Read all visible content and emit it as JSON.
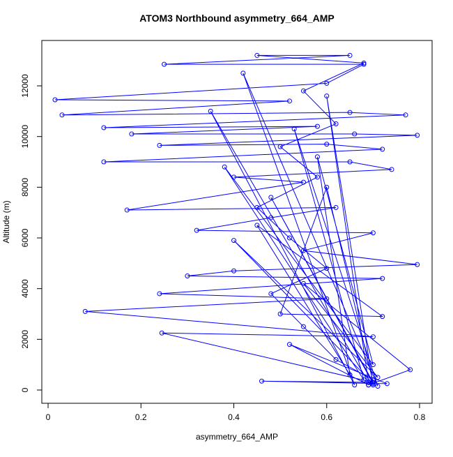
{
  "chart_data": {
    "type": "line",
    "title": "ATOM3 Northbound asymmetry_664_AMP",
    "x_label": "asymmetry_664_AMP",
    "y_label": "Altitude (m)",
    "xlim": [
      -0.0135,
      0.827
    ],
    "ylim": [
      -523,
      13790
    ],
    "xticks": [
      0,
      0.2,
      0.4,
      0.6,
      0.8
    ],
    "yticks": [
      0,
      2000,
      4000,
      6000,
      8000,
      10000,
      12000
    ],
    "series": [
      {
        "color": "#0000ff",
        "x": [
          0.69,
          0.7,
          0.62,
          0.55,
          0.48,
          0.6,
          0.52,
          0.45,
          0.58,
          0.5,
          0.62,
          0.55,
          0.68,
          0.45,
          0.65,
          0.25,
          0.68,
          0.6,
          0.015,
          0.52,
          0.03,
          0.65,
          0.77,
          0.12,
          0.58,
          0.18,
          0.66,
          0.795,
          0.24,
          0.6,
          0.72,
          0.12,
          0.65,
          0.74,
          0.4,
          0.55,
          0.17,
          0.62,
          0.48,
          0.32,
          0.7,
          0.55,
          0.795,
          0.4,
          0.3,
          0.72,
          0.24,
          0.6,
          0.08,
          0.7,
          0.245,
          0.7,
          0.46,
          0.73,
          0.52,
          0.69,
          0.78,
          0.55,
          0.71,
          0.4,
          0.7,
          0.48,
          0.7,
          0.6,
          0.5,
          0.72,
          0.45,
          0.65,
          0.58,
          0.7,
          0.38,
          0.68,
          0.53,
          0.71,
          0.42,
          0.66,
          0.35,
          0.69,
          0.6,
          0.7
        ],
        "y": [
          200,
          400,
          1200,
          2500,
          3800,
          4800,
          6000,
          7200,
          8400,
          9600,
          10500,
          11800,
          12900,
          13200,
          13200,
          12850,
          12850,
          12100,
          11450,
          11400,
          10850,
          10950,
          10850,
          10350,
          10400,
          10100,
          10100,
          10050,
          9650,
          9700,
          9500,
          9000,
          9000,
          8700,
          8400,
          8200,
          7100,
          7200,
          6800,
          6300,
          6200,
          5500,
          4950,
          4700,
          4500,
          4400,
          3800,
          3600,
          3100,
          2100,
          2250,
          300,
          350,
          250,
          1800,
          200,
          800,
          4200,
          500,
          5900,
          250,
          7600,
          300,
          8000,
          3000,
          2900,
          6500,
          600,
          9200,
          1000,
          8800,
          400,
          10300,
          150,
          12500,
          200,
          11000,
          300,
          11600,
          200
        ]
      }
    ]
  }
}
